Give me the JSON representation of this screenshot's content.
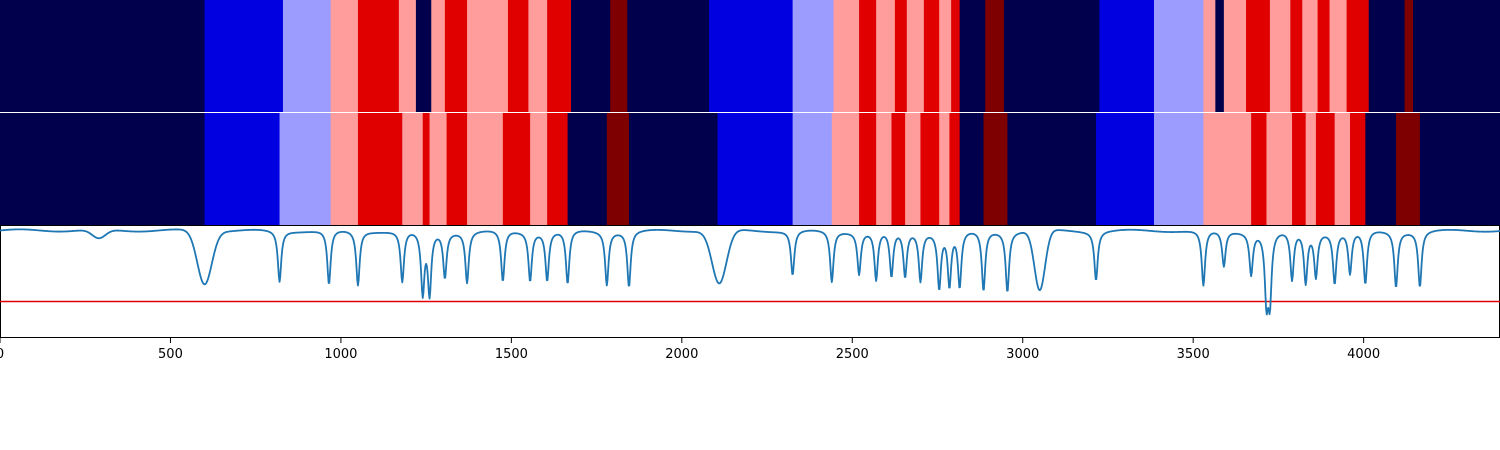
{
  "chart_data": [
    {
      "type": "heatmap",
      "xlim": [
        0,
        4400
      ],
      "colors": {
        "0": "#00004c",
        "1": "#0000e0",
        "2": "#9c9cff",
        "3": "#ff9c9c",
        "4": "#e00000",
        "5": "#7f0000"
      },
      "segments": [
        [
          0,
          600,
          0
        ],
        [
          600,
          830,
          1
        ],
        [
          830,
          970,
          2
        ],
        [
          970,
          1050,
          3
        ],
        [
          1050,
          1170,
          4
        ],
        [
          1170,
          1220,
          3
        ],
        [
          1220,
          1265,
          0
        ],
        [
          1265,
          1305,
          3
        ],
        [
          1305,
          1370,
          4
        ],
        [
          1370,
          1490,
          3
        ],
        [
          1490,
          1550,
          4
        ],
        [
          1550,
          1605,
          3
        ],
        [
          1605,
          1675,
          4
        ],
        [
          1675,
          1790,
          0
        ],
        [
          1790,
          1840,
          5
        ],
        [
          1840,
          2080,
          0
        ],
        [
          2080,
          2325,
          1
        ],
        [
          2325,
          2445,
          2
        ],
        [
          2445,
          2520,
          3
        ],
        [
          2520,
          2570,
          4
        ],
        [
          2570,
          2625,
          3
        ],
        [
          2625,
          2660,
          4
        ],
        [
          2660,
          2710,
          3
        ],
        [
          2710,
          2755,
          4
        ],
        [
          2755,
          2790,
          3
        ],
        [
          2790,
          2815,
          4
        ],
        [
          2815,
          2890,
          0
        ],
        [
          2890,
          2945,
          5
        ],
        [
          2945,
          3225,
          0
        ],
        [
          3225,
          3385,
          1
        ],
        [
          3385,
          3530,
          2
        ],
        [
          3530,
          3565,
          3
        ],
        [
          3565,
          3590,
          0
        ],
        [
          3590,
          3655,
          3
        ],
        [
          3655,
          3725,
          4
        ],
        [
          3725,
          3785,
          3
        ],
        [
          3785,
          3820,
          4
        ],
        [
          3820,
          3865,
          3
        ],
        [
          3865,
          3900,
          4
        ],
        [
          3900,
          3950,
          3
        ],
        [
          3950,
          4015,
          4
        ],
        [
          4015,
          4120,
          0
        ],
        [
          4120,
          4145,
          5
        ],
        [
          4145,
          4400,
          0
        ]
      ]
    },
    {
      "type": "heatmap",
      "xlim": [
        0,
        4400
      ],
      "colors": {
        "0": "#00004c",
        "1": "#0000e0",
        "2": "#9c9cff",
        "3": "#ff9c9c",
        "4": "#e00000",
        "5": "#7f0000"
      },
      "segments": [
        [
          0,
          600,
          0
        ],
        [
          600,
          820,
          1
        ],
        [
          820,
          970,
          2
        ],
        [
          970,
          1050,
          3
        ],
        [
          1050,
          1180,
          4
        ],
        [
          1180,
          1240,
          3
        ],
        [
          1240,
          1260,
          4
        ],
        [
          1260,
          1310,
          3
        ],
        [
          1310,
          1370,
          4
        ],
        [
          1370,
          1475,
          3
        ],
        [
          1475,
          1555,
          4
        ],
        [
          1555,
          1605,
          3
        ],
        [
          1605,
          1665,
          4
        ],
        [
          1665,
          1780,
          0
        ],
        [
          1780,
          1845,
          5
        ],
        [
          1845,
          2105,
          0
        ],
        [
          2105,
          2325,
          1
        ],
        [
          2325,
          2440,
          2
        ],
        [
          2440,
          2520,
          3
        ],
        [
          2520,
          2570,
          4
        ],
        [
          2570,
          2615,
          3
        ],
        [
          2615,
          2655,
          4
        ],
        [
          2655,
          2700,
          3
        ],
        [
          2700,
          2755,
          4
        ],
        [
          2755,
          2785,
          3
        ],
        [
          2785,
          2815,
          4
        ],
        [
          2815,
          2885,
          0
        ],
        [
          2885,
          2955,
          5
        ],
        [
          2955,
          3215,
          0
        ],
        [
          3215,
          3385,
          1
        ],
        [
          3385,
          3530,
          2
        ],
        [
          3530,
          3670,
          3
        ],
        [
          3670,
          3715,
          4
        ],
        [
          3715,
          3725,
          3
        ],
        [
          3725,
          3790,
          3
        ],
        [
          3790,
          3830,
          4
        ],
        [
          3830,
          3860,
          3
        ],
        [
          3860,
          3915,
          4
        ],
        [
          3915,
          3960,
          3
        ],
        [
          3960,
          4005,
          4
        ],
        [
          4005,
          4095,
          0
        ],
        [
          4095,
          4165,
          5
        ],
        [
          4165,
          4400,
          0
        ]
      ]
    },
    {
      "type": "line",
      "xlim": [
        0,
        4400
      ],
      "ylim": [
        0,
        1.0
      ],
      "xticks": [
        0,
        500,
        1000,
        1500,
        2000,
        2500,
        3000,
        3500,
        4000
      ],
      "xtick_labels": [
        "0",
        "500",
        "1000",
        "1500",
        "2000",
        "2500",
        "3000",
        "3500",
        "4000"
      ],
      "threshold": 0.32,
      "threshold_color": "#e00000",
      "line_color": "#1f77b4",
      "baseline": 0.96,
      "broad_dips": [
        [
          290,
          0.88,
          28
        ],
        [
          600,
          0.48,
          30
        ],
        [
          2110,
          0.48,
          30
        ],
        [
          3050,
          0.42,
          22
        ]
      ],
      "sharp_dips": [
        [
          820,
          0.5
        ],
        [
          965,
          0.47
        ],
        [
          1050,
          0.47
        ],
        [
          1180,
          0.5
        ],
        [
          1240,
          0.4
        ],
        [
          1260,
          0.4
        ],
        [
          1305,
          0.55
        ],
        [
          1370,
          0.5
        ],
        [
          1475,
          0.5
        ],
        [
          1555,
          0.52
        ],
        [
          1605,
          0.52
        ],
        [
          1665,
          0.48
        ],
        [
          1780,
          0.48
        ],
        [
          1845,
          0.46
        ],
        [
          2325,
          0.56
        ],
        [
          2440,
          0.5
        ],
        [
          2520,
          0.58
        ],
        [
          2570,
          0.52
        ],
        [
          2615,
          0.55
        ],
        [
          2655,
          0.55
        ],
        [
          2700,
          0.52
        ],
        [
          2755,
          0.46
        ],
        [
          2785,
          0.48
        ],
        [
          2815,
          0.46
        ],
        [
          2885,
          0.42
        ],
        [
          2955,
          0.42
        ],
        [
          3215,
          0.52
        ],
        [
          3530,
          0.46
        ],
        [
          3590,
          0.64
        ],
        [
          3670,
          0.58
        ],
        [
          3715,
          0.38
        ],
        [
          3725,
          0.38
        ],
        [
          3790,
          0.52
        ],
        [
          3830,
          0.5
        ],
        [
          3860,
          0.56
        ],
        [
          3915,
          0.5
        ],
        [
          3960,
          0.58
        ],
        [
          4005,
          0.48
        ],
        [
          4095,
          0.46
        ],
        [
          4165,
          0.46
        ]
      ]
    }
  ]
}
